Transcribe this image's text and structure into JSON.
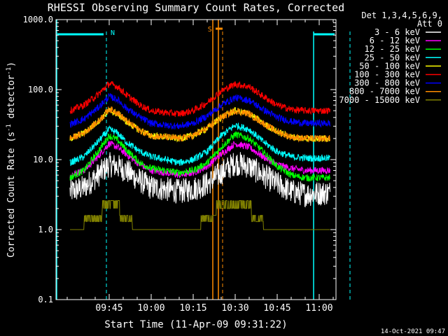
{
  "chart_data": {
    "type": "line",
    "title": "RHESSI Observing Summary Count Rates, Corrected",
    "xlabel": "Start Time (11-Apr-09 09:31:22)",
    "ylabel_main": "Corrected Count Rate (s",
    "ylabel_sup1": "-1",
    "ylabel_mid": " detector",
    "ylabel_sup2": "-1",
    "ylabel_end": ")",
    "yscale": "log",
    "ylim": [
      0.1,
      1000
    ],
    "ytick_values": [
      0.1,
      1,
      10,
      100,
      1000
    ],
    "ytick_labels": [
      "0.1",
      "1.0",
      "10.0",
      "100.0",
      "1000.0"
    ],
    "xlim_minutes": [
      -5,
      95
    ],
    "xtick_minutes": [
      14,
      29,
      44,
      59,
      74,
      89
    ],
    "xtick_labels": [
      "09:45",
      "10:00",
      "10:15",
      "10:30",
      "10:45",
      "11:00"
    ],
    "legend_header_1": "Det 1,3,4,5,6,9,",
    "legend_header_2": "Att 0",
    "legend_position": "right",
    "footer_timestamp": "14-Oct-2021 09:47",
    "annotations": [
      {
        "label": "N",
        "color": "#00ffff"
      },
      {
        "label": "S",
        "color": "#ff8c00"
      }
    ],
    "x_minutes": [
      0,
      5,
      10,
      14,
      17,
      20,
      25,
      29,
      34,
      39,
      44,
      49,
      54,
      59,
      64,
      69,
      74,
      79,
      84,
      89,
      93
    ],
    "series": [
      {
        "name": "3 - 6 keV",
        "color": "#ffffff",
        "values": [
          3.5,
          4,
          6,
          8.5,
          8,
          7,
          5,
          4,
          3.8,
          3.5,
          3.8,
          4.5,
          6.5,
          9,
          8,
          6,
          4.5,
          3.5,
          3.2,
          3.3,
          3.4
        ]
      },
      {
        "name": "6 - 12 keV",
        "color": "#ff00ff",
        "values": [
          6,
          7,
          11,
          17,
          15,
          12,
          8.5,
          7,
          6.5,
          6,
          6.5,
          8,
          12,
          17,
          15,
          11,
          8.5,
          7.5,
          7,
          7,
          7
        ]
      },
      {
        "name": "12 - 25 keV",
        "color": "#00ff00",
        "values": [
          5.5,
          7,
          13,
          22,
          19,
          14,
          9,
          7.5,
          7,
          6.5,
          7,
          9,
          15,
          23,
          20,
          13,
          8,
          6,
          5.5,
          5.5,
          5.5
        ]
      },
      {
        "name": "25 - 50 keV",
        "color": "#00ffff",
        "values": [
          9,
          11,
          18,
          27,
          24,
          18,
          13,
          11,
          10,
          9,
          10,
          13,
          22,
          31,
          27,
          18,
          13,
          11,
          10.5,
          10.5,
          10.5
        ]
      },
      {
        "name": "50 - 100 keV",
        "color": "#ffff00",
        "values": [
          20,
          24,
          35,
          50,
          45,
          35,
          26,
          22,
          21,
          20,
          22,
          28,
          40,
          50,
          45,
          33,
          25,
          21,
          20,
          20,
          20
        ]
      },
      {
        "name": "100 - 300 keV",
        "color": "#ff0000",
        "values": [
          50,
          60,
          85,
          122,
          110,
          85,
          60,
          50,
          47,
          45,
          50,
          65,
          95,
          120,
          110,
          80,
          60,
          52,
          50,
          50,
          50
        ]
      },
      {
        "name": "300 - 800 keV",
        "color": "#0000ff",
        "values": [
          32,
          38,
          55,
          80,
          72,
          55,
          40,
          33,
          31,
          30,
          33,
          42,
          60,
          77,
          70,
          52,
          40,
          35,
          33,
          33,
          33
        ]
      },
      {
        "name": "800 - 7000 keV",
        "color": "#ff8c00",
        "values": [
          20,
          24,
          35,
          53,
          47,
          36,
          26,
          22,
          21,
          20,
          22,
          28,
          40,
          50,
          45,
          33,
          25,
          21,
          20,
          20,
          20
        ]
      },
      {
        "name": "7000 - 15000 keV",
        "color": "#808000",
        "values": [
          1,
          1.3,
          2,
          2.6,
          2.4,
          1.6,
          1,
          1,
          1,
          1,
          1,
          1.6,
          2.6,
          2.6,
          2.4,
          1.3,
          1,
          1,
          1,
          1,
          1
        ]
      }
    ]
  }
}
